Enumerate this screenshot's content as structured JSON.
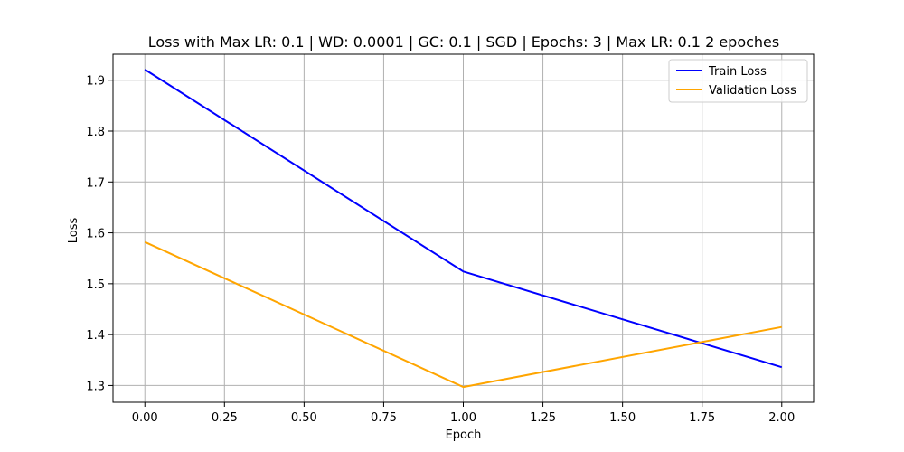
{
  "chart_data": {
    "type": "line",
    "title": "Loss with Max LR: 0.1 | WD: 0.0001 | GC: 0.1 | SGD | Epochs: 3 | Max LR: 0.1 2 epoches",
    "xlabel": "Epoch",
    "ylabel": "Loss",
    "x": [
      0,
      1,
      2
    ],
    "xlim": [
      -0.1,
      2.1
    ],
    "ylim": [
      1.267,
      1.951
    ],
    "xticks": [
      "0.00",
      "0.25",
      "0.50",
      "0.75",
      "1.00",
      "1.25",
      "1.50",
      "1.75",
      "2.00"
    ],
    "yticks": [
      "1.3",
      "1.4",
      "1.5",
      "1.6",
      "1.7",
      "1.8",
      "1.9"
    ],
    "grid": true,
    "legend_position": "top-right",
    "series": [
      {
        "name": "Train Loss",
        "color": "#0000ff",
        "values": [
          1.921,
          1.524,
          1.336
        ]
      },
      {
        "name": "Validation Loss",
        "color": "#ffa500",
        "values": [
          1.582,
          1.297,
          1.415
        ]
      }
    ]
  }
}
